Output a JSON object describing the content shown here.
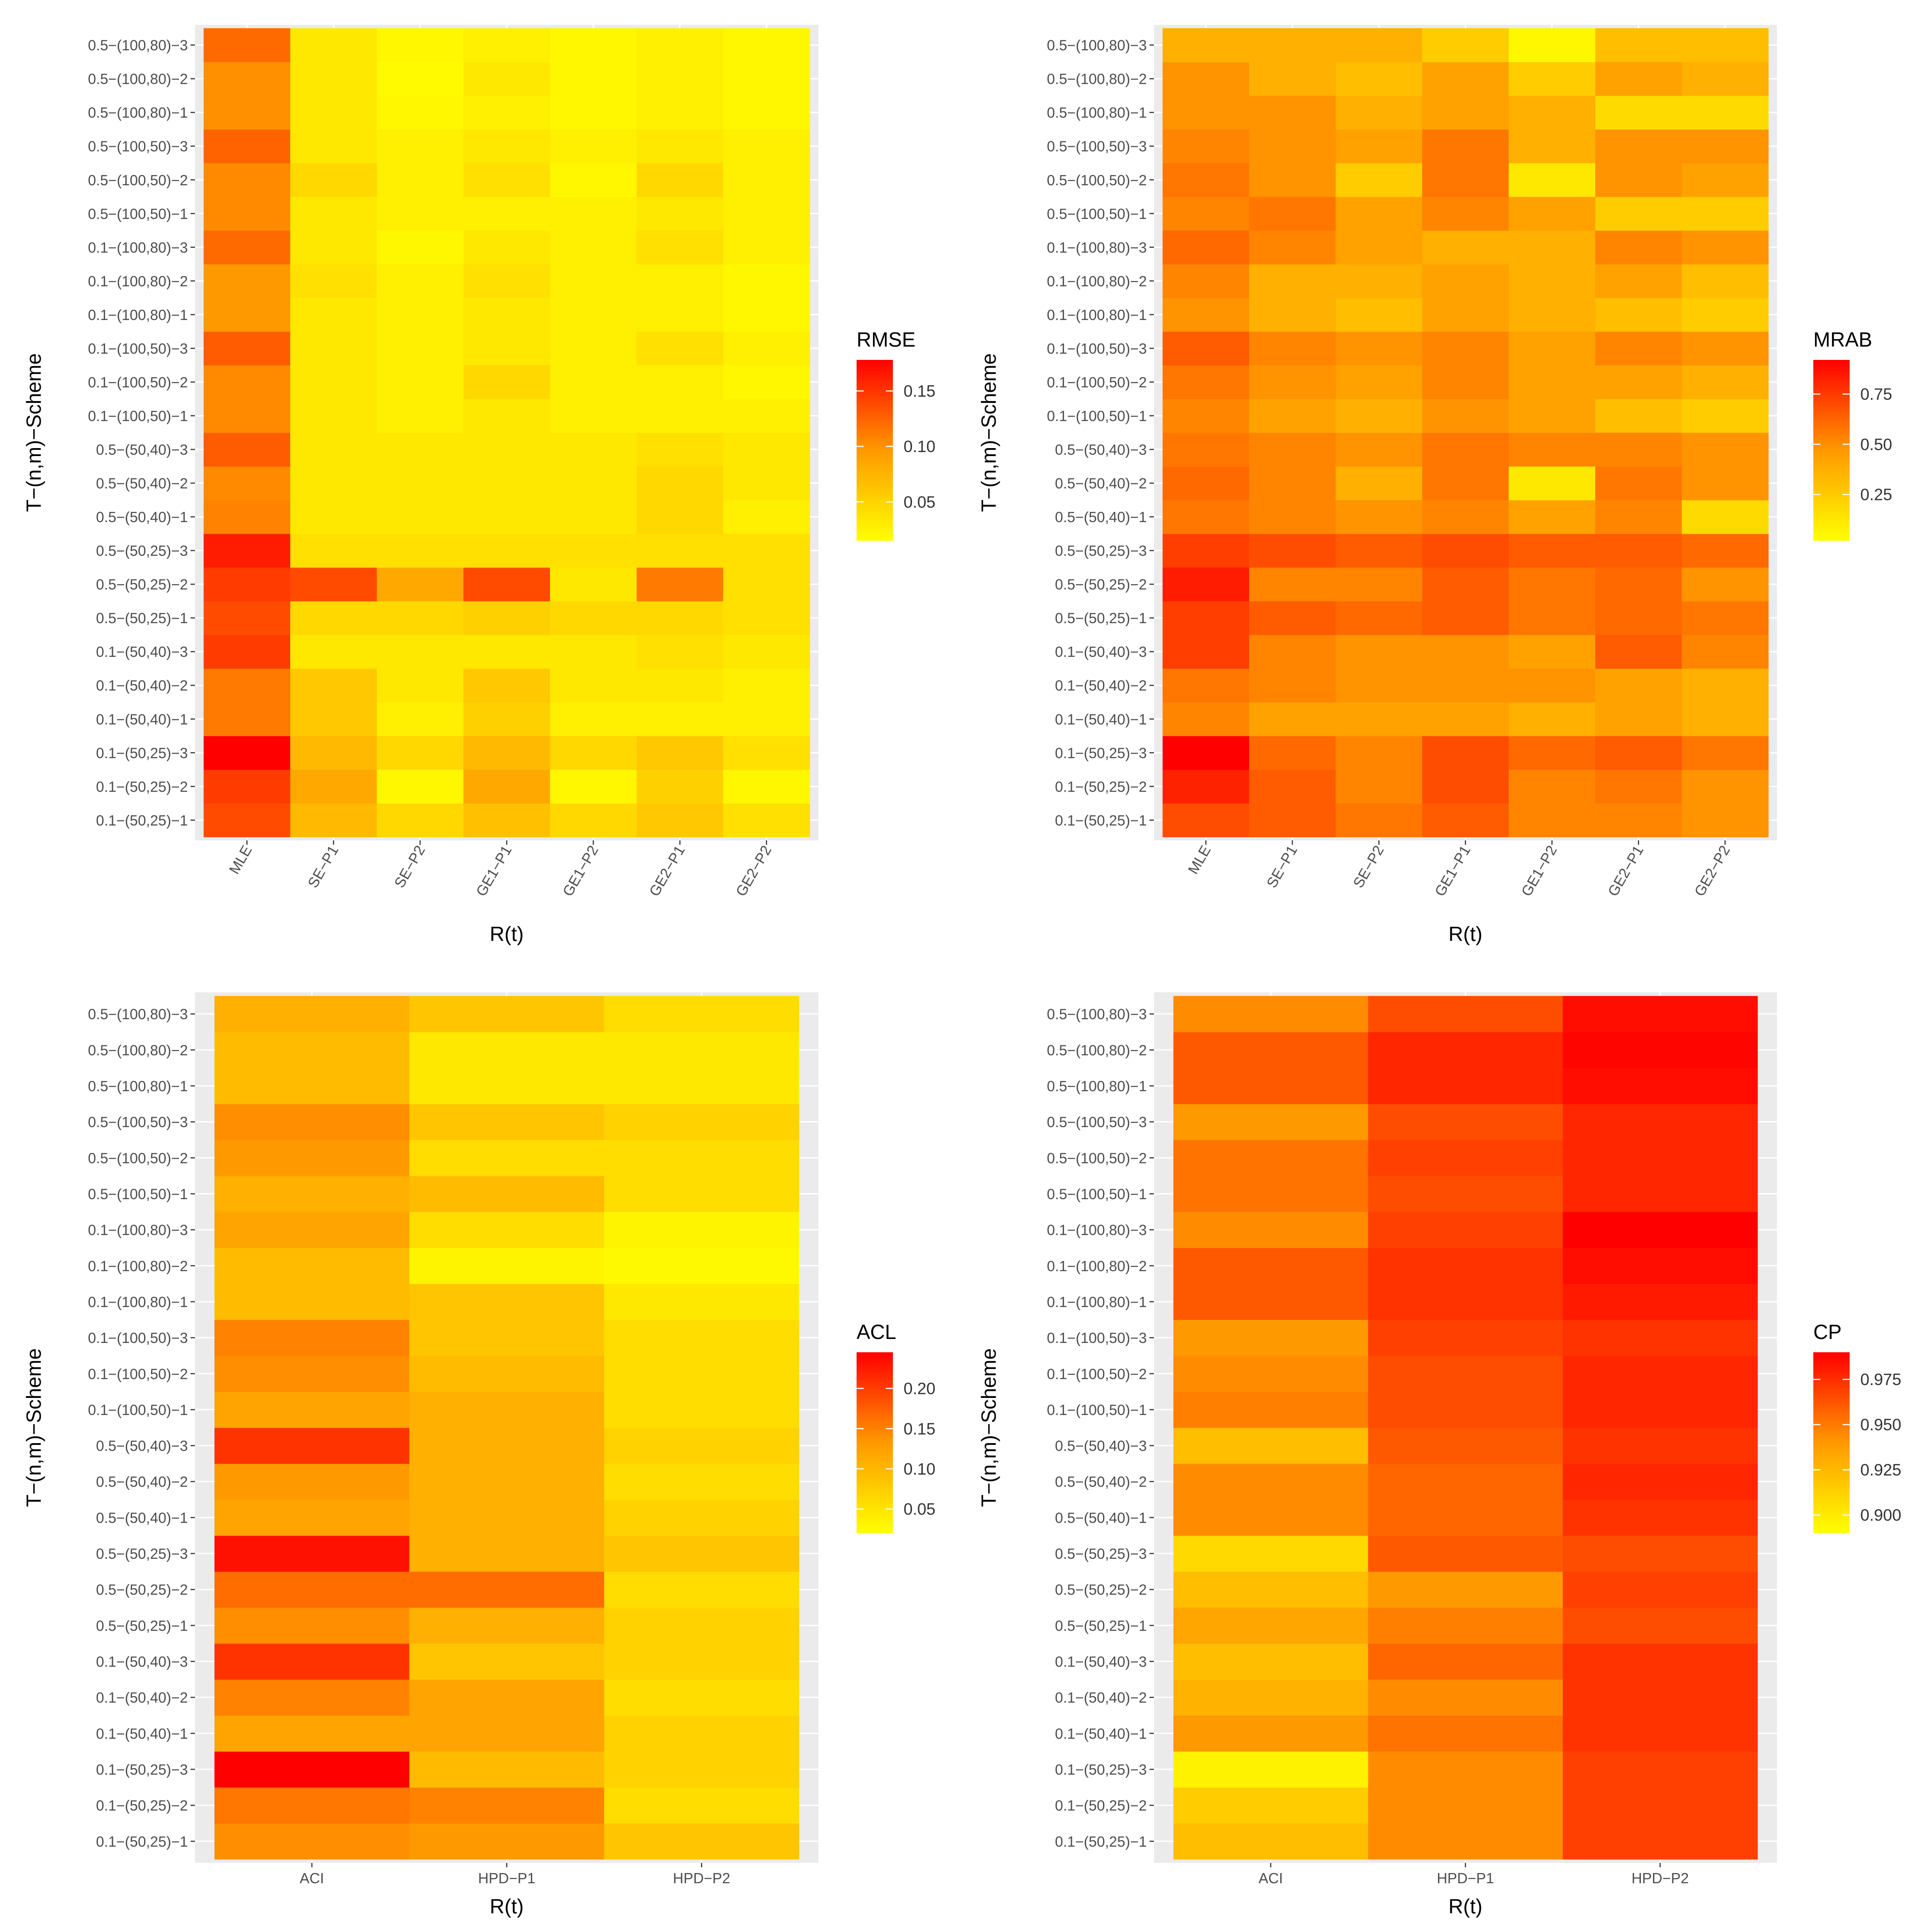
{
  "row_labels": [
    "0.1−(50,25)−1",
    "0.1−(50,25)−2",
    "0.1−(50,25)−3",
    "0.1−(50,40)−1",
    "0.1−(50,40)−2",
    "0.1−(50,40)−3",
    "0.5−(50,25)−1",
    "0.5−(50,25)−2",
    "0.5−(50,25)−3",
    "0.5−(50,40)−1",
    "0.5−(50,40)−2",
    "0.5−(50,40)−3",
    "0.1−(100,50)−1",
    "0.1−(100,50)−2",
    "0.1−(100,50)−3",
    "0.1−(100,80)−1",
    "0.1−(100,80)−2",
    "0.1−(100,80)−3",
    "0.5−(100,50)−1",
    "0.5−(100,50)−2",
    "0.5−(100,50)−3",
    "0.5−(100,80)−1",
    "0.5−(100,80)−2",
    "0.5−(100,80)−3"
  ],
  "chart_data": [
    {
      "type": "heatmap",
      "title": "",
      "xlabel": "R(t)",
      "ylabel": "T−(n,m)−Scheme",
      "legend_title": "RMSE",
      "legend_ticks": [
        0.05,
        0.1,
        0.15
      ],
      "legend_tick_labels": [
        "0.05",
        "0.10",
        "0.15"
      ],
      "range": [
        0.015,
        0.178
      ],
      "categories": [
        "MLE",
        "SE−P1",
        "SE−P2",
        "GE1−P1",
        "GE1−P2",
        "GE2−P1",
        "GE2−P2"
      ],
      "values": [
        [
          0.13,
          0.06,
          0.04,
          0.055,
          0.04,
          0.05,
          0.035
        ],
        [
          0.14,
          0.07,
          0.02,
          0.07,
          0.02,
          0.045,
          0.02
        ],
        [
          0.178,
          0.06,
          0.04,
          0.06,
          0.04,
          0.05,
          0.035
        ],
        [
          0.1,
          0.05,
          0.025,
          0.045,
          0.025,
          0.025,
          0.025
        ],
        [
          0.1,
          0.05,
          0.03,
          0.05,
          0.03,
          0.03,
          0.025
        ],
        [
          0.14,
          0.03,
          0.03,
          0.03,
          0.03,
          0.035,
          0.03
        ],
        [
          0.13,
          0.04,
          0.04,
          0.045,
          0.04,
          0.04,
          0.035
        ],
        [
          0.14,
          0.13,
          0.07,
          0.13,
          0.03,
          0.1,
          0.035
        ],
        [
          0.16,
          0.035,
          0.035,
          0.035,
          0.035,
          0.035,
          0.035
        ],
        [
          0.095,
          0.03,
          0.03,
          0.03,
          0.03,
          0.04,
          0.025
        ],
        [
          0.09,
          0.03,
          0.03,
          0.03,
          0.03,
          0.04,
          0.03
        ],
        [
          0.12,
          0.03,
          0.03,
          0.03,
          0.03,
          0.035,
          0.03
        ],
        [
          0.09,
          0.03,
          0.025,
          0.03,
          0.025,
          0.025,
          0.025
        ],
        [
          0.09,
          0.03,
          0.025,
          0.04,
          0.025,
          0.025,
          0.02
        ],
        [
          0.12,
          0.03,
          0.025,
          0.03,
          0.025,
          0.035,
          0.025
        ],
        [
          0.08,
          0.03,
          0.025,
          0.03,
          0.025,
          0.025,
          0.02
        ],
        [
          0.08,
          0.035,
          0.025,
          0.035,
          0.025,
          0.025,
          0.02
        ],
        [
          0.11,
          0.03,
          0.02,
          0.03,
          0.025,
          0.035,
          0.025
        ],
        [
          0.09,
          0.03,
          0.025,
          0.025,
          0.025,
          0.03,
          0.025
        ],
        [
          0.09,
          0.04,
          0.025,
          0.035,
          0.02,
          0.04,
          0.025
        ],
        [
          0.115,
          0.03,
          0.025,
          0.03,
          0.025,
          0.03,
          0.025
        ],
        [
          0.085,
          0.03,
          0.02,
          0.025,
          0.02,
          0.025,
          0.02
        ],
        [
          0.085,
          0.03,
          0.018,
          0.03,
          0.02,
          0.025,
          0.02
        ],
        [
          0.11,
          0.03,
          0.02,
          0.025,
          0.02,
          0.025,
          0.02
        ]
      ]
    },
    {
      "type": "heatmap",
      "title": "",
      "xlabel": "R(t)",
      "ylabel": "T−(n,m)−Scheme",
      "legend_title": "MRAB",
      "legend_ticks": [
        0.25,
        0.5,
        0.75
      ],
      "legend_tick_labels": [
        "0.25",
        "0.50",
        "0.75"
      ],
      "range": [
        0.02,
        0.92
      ],
      "categories": [
        "MLE",
        "SE−P1",
        "SE−P2",
        "GE1−P1",
        "GE1−P2",
        "GE2−P1",
        "GE2−P2"
      ],
      "values": [
        [
          0.65,
          0.6,
          0.5,
          0.6,
          0.45,
          0.45,
          0.4
        ],
        [
          0.8,
          0.6,
          0.45,
          0.65,
          0.45,
          0.5,
          0.4
        ],
        [
          0.92,
          0.55,
          0.45,
          0.65,
          0.55,
          0.6,
          0.5
        ],
        [
          0.45,
          0.35,
          0.35,
          0.35,
          0.3,
          0.35,
          0.3
        ],
        [
          0.5,
          0.45,
          0.4,
          0.4,
          0.4,
          0.35,
          0.3
        ],
        [
          0.7,
          0.45,
          0.4,
          0.4,
          0.35,
          0.6,
          0.45
        ],
        [
          0.7,
          0.6,
          0.55,
          0.6,
          0.5,
          0.55,
          0.5
        ],
        [
          0.82,
          0.45,
          0.45,
          0.6,
          0.5,
          0.55,
          0.4
        ],
        [
          0.7,
          0.65,
          0.6,
          0.65,
          0.6,
          0.6,
          0.55
        ],
        [
          0.5,
          0.45,
          0.4,
          0.45,
          0.35,
          0.45,
          0.15
        ],
        [
          0.55,
          0.45,
          0.3,
          0.5,
          0.1,
          0.5,
          0.4
        ],
        [
          0.5,
          0.45,
          0.4,
          0.5,
          0.45,
          0.45,
          0.4
        ],
        [
          0.45,
          0.35,
          0.3,
          0.4,
          0.35,
          0.25,
          0.2
        ],
        [
          0.5,
          0.4,
          0.35,
          0.45,
          0.35,
          0.35,
          0.3
        ],
        [
          0.6,
          0.45,
          0.4,
          0.45,
          0.35,
          0.45,
          0.4
        ],
        [
          0.4,
          0.3,
          0.25,
          0.35,
          0.3,
          0.25,
          0.2
        ],
        [
          0.45,
          0.3,
          0.3,
          0.35,
          0.3,
          0.35,
          0.25
        ],
        [
          0.55,
          0.45,
          0.35,
          0.3,
          0.3,
          0.45,
          0.4
        ],
        [
          0.45,
          0.5,
          0.35,
          0.45,
          0.35,
          0.2,
          0.2
        ],
        [
          0.5,
          0.4,
          0.2,
          0.5,
          0.1,
          0.4,
          0.35
        ],
        [
          0.45,
          0.4,
          0.35,
          0.5,
          0.3,
          0.4,
          0.4
        ],
        [
          0.4,
          0.4,
          0.3,
          0.35,
          0.3,
          0.15,
          0.15
        ],
        [
          0.4,
          0.3,
          0.25,
          0.35,
          0.2,
          0.35,
          0.3
        ],
        [
          0.3,
          0.3,
          0.3,
          0.2,
          0.05,
          0.25,
          0.25
        ]
      ]
    },
    {
      "type": "heatmap",
      "title": "",
      "xlabel": "R(t)",
      "ylabel": "T−(n,m)−Scheme",
      "legend_title": "ACL",
      "legend_ticks": [
        0.05,
        0.1,
        0.15,
        0.2
      ],
      "legend_tick_labels": [
        "0.05",
        "0.10",
        "0.15",
        "0.20"
      ],
      "range": [
        0.02,
        0.245
      ],
      "categories": [
        "ACI",
        "HPD−P1",
        "HPD−P2"
      ],
      "values": [
        [
          0.12,
          0.11,
          0.07
        ],
        [
          0.14,
          0.13,
          0.05
        ],
        [
          0.245,
          0.08,
          0.06
        ],
        [
          0.1,
          0.1,
          0.06
        ],
        [
          0.13,
          0.1,
          0.05
        ],
        [
          0.2,
          0.07,
          0.06
        ],
        [
          0.12,
          0.09,
          0.06
        ],
        [
          0.15,
          0.15,
          0.05
        ],
        [
          0.23,
          0.09,
          0.07
        ],
        [
          0.1,
          0.09,
          0.06
        ],
        [
          0.11,
          0.09,
          0.05
        ],
        [
          0.2,
          0.09,
          0.06
        ],
        [
          0.1,
          0.09,
          0.05
        ],
        [
          0.12,
          0.08,
          0.05
        ],
        [
          0.13,
          0.07,
          0.05
        ],
        [
          0.08,
          0.07,
          0.04
        ],
        [
          0.08,
          0.03,
          0.025
        ],
        [
          0.1,
          0.05,
          0.03
        ],
        [
          0.09,
          0.08,
          0.05
        ],
        [
          0.11,
          0.05,
          0.05
        ],
        [
          0.12,
          0.07,
          0.06
        ],
        [
          0.08,
          0.04,
          0.04
        ],
        [
          0.08,
          0.04,
          0.04
        ],
        [
          0.09,
          0.07,
          0.05
        ]
      ]
    },
    {
      "type": "heatmap",
      "title": "",
      "xlabel": "R(t)",
      "ylabel": "T−(n,m)−Scheme",
      "legend_title": "CP",
      "legend_ticks": [
        0.9,
        0.925,
        0.95,
        0.975
      ],
      "legend_tick_labels": [
        "0.900",
        "0.925",
        "0.950",
        "0.975"
      ],
      "range": [
        0.89,
        0.99
      ],
      "categories": [
        "ACI",
        "HPD−P1",
        "HPD−P2"
      ],
      "values": [
        [
          0.915,
          0.935,
          0.965
        ],
        [
          0.91,
          0.935,
          0.965
        ],
        [
          0.895,
          0.935,
          0.965
        ],
        [
          0.93,
          0.945,
          0.97
        ],
        [
          0.92,
          0.935,
          0.97
        ],
        [
          0.915,
          0.95,
          0.97
        ],
        [
          0.925,
          0.94,
          0.96
        ],
        [
          0.915,
          0.93,
          0.965
        ],
        [
          0.905,
          0.955,
          0.96
        ],
        [
          0.935,
          0.95,
          0.97
        ],
        [
          0.935,
          0.95,
          0.975
        ],
        [
          0.915,
          0.955,
          0.97
        ],
        [
          0.94,
          0.96,
          0.975
        ],
        [
          0.935,
          0.96,
          0.975
        ],
        [
          0.93,
          0.965,
          0.97
        ],
        [
          0.955,
          0.97,
          0.98
        ],
        [
          0.955,
          0.97,
          0.985
        ],
        [
          0.935,
          0.965,
          0.99
        ],
        [
          0.945,
          0.96,
          0.975
        ],
        [
          0.945,
          0.965,
          0.975
        ],
        [
          0.93,
          0.96,
          0.975
        ],
        [
          0.955,
          0.975,
          0.985
        ],
        [
          0.955,
          0.975,
          0.988
        ],
        [
          0.935,
          0.96,
          0.985
        ]
      ]
    }
  ]
}
